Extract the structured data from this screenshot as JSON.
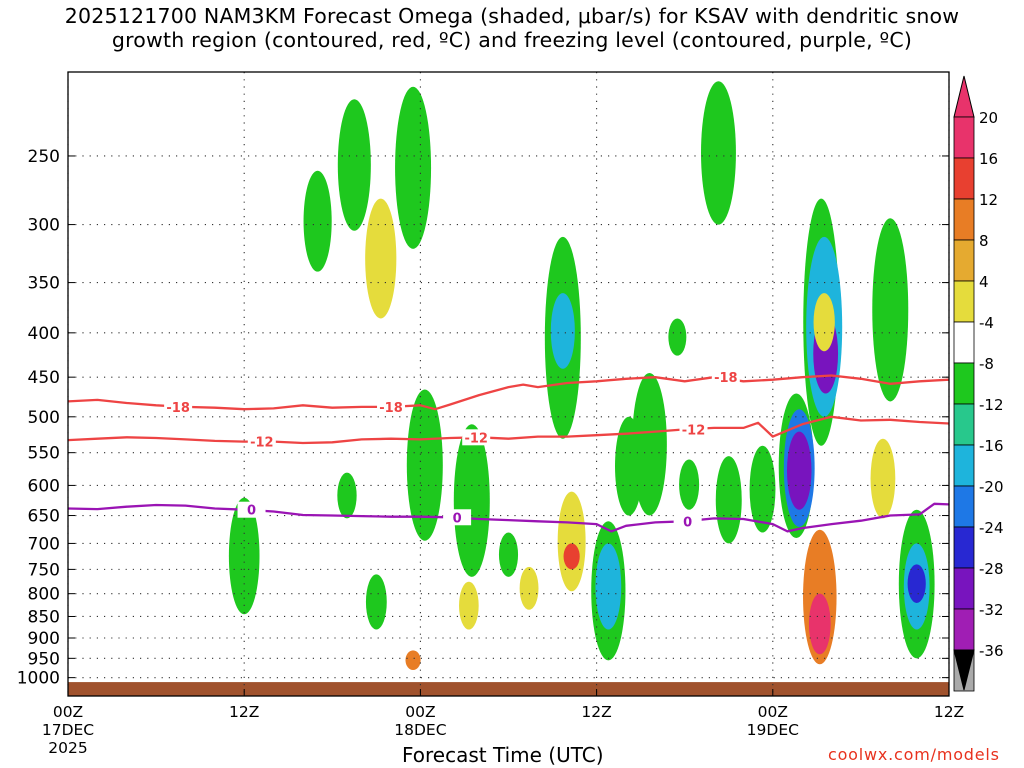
{
  "title": {
    "line1": "2025121700 NAM3KM Forecast Omega (shaded, μbar/s) for KSAV with dendritic snow",
    "line2": "growth region (contoured, red, ºC) and freezing level (contoured, purple, ºC)"
  },
  "credit": "coolwx.com/models",
  "chart_data": {
    "type": "heatmap",
    "title": "2025121700 NAM3KM Forecast Omega (shaded, μbar/s) for KSAV with dendritic snow growth region (contoured, red, ºC) and freezing level (contoured, purple, ºC)",
    "xlabel": "Forecast Time (UTC)",
    "ylabel": "",
    "x_range_hours": [
      0,
      60
    ],
    "y_range_hPa": [
      1050,
      200
    ],
    "y_ticks": [
      250,
      300,
      350,
      400,
      450,
      500,
      550,
      600,
      650,
      700,
      750,
      800,
      850,
      900,
      950,
      1000
    ],
    "x_ticks": [
      {
        "hour": 0,
        "label": "00Z",
        "date": "17DEC",
        "year": "2025"
      },
      {
        "hour": 12,
        "label": "12Z",
        "date": "",
        "year": ""
      },
      {
        "hour": 24,
        "label": "00Z",
        "date": "18DEC",
        "year": ""
      },
      {
        "hour": 36,
        "label": "12Z",
        "date": "",
        "year": ""
      },
      {
        "hour": 48,
        "label": "00Z",
        "date": "19DEC",
        "year": ""
      },
      {
        "hour": 60,
        "label": "12Z",
        "date": "",
        "year": ""
      }
    ],
    "colorbar": {
      "labels": [
        "20",
        "16",
        "12",
        "8",
        "4",
        "-4",
        "-8",
        "-12",
        "-16",
        "-20",
        "-24",
        "-28",
        "-32",
        "-36"
      ],
      "colors": [
        "#e8336b",
        "#e84030",
        "#e87d25",
        "#e5aa30",
        "#e5dc3c",
        "#ffffff",
        "#1ec81e",
        "#28c88c",
        "#1eb4dc",
        "#1e78e6",
        "#2828d2",
        "#7814be",
        "#a01eb4",
        "#aaaaaa"
      ]
    },
    "contours": [
      {
        "name": "dendritic-minus-18",
        "label": "-18",
        "color": "#ee4444",
        "x": [
          0,
          2,
          4,
          6,
          8,
          10,
          12,
          14,
          16,
          18,
          20,
          22,
          24,
          25,
          26,
          28,
          30,
          31,
          32,
          34,
          36,
          38,
          40,
          42,
          44,
          46,
          48,
          50,
          52,
          54,
          56,
          58,
          60
        ],
        "y": [
          480,
          478,
          482,
          485,
          487,
          488,
          490,
          489,
          485,
          488,
          487,
          487,
          485,
          490,
          484,
          472,
          462,
          459,
          462,
          457,
          455,
          452,
          450,
          455,
          450,
          455,
          453,
          450,
          448,
          452,
          458,
          455,
          453
        ]
      },
      {
        "name": "dendritic-minus-12",
        "label": "-12",
        "color": "#ee4444",
        "x": [
          0,
          2,
          4,
          6,
          8,
          10,
          12,
          14,
          16,
          18,
          20,
          22,
          24,
          26,
          28,
          30,
          32,
          34,
          36,
          38,
          40,
          42,
          44,
          46,
          47,
          48,
          50,
          52,
          54,
          56,
          58,
          60
        ],
        "y": [
          532,
          530,
          528,
          529,
          531,
          533,
          534,
          534,
          536,
          535,
          531,
          530,
          531,
          529,
          528,
          530,
          527,
          527,
          525,
          523,
          520,
          517,
          515,
          515,
          508,
          527,
          510,
          500,
          505,
          504,
          507,
          509
        ]
      },
      {
        "name": "freezing-level-0",
        "label": "0",
        "color": "#9a14b4",
        "x": [
          0,
          2,
          4,
          6,
          8,
          10,
          12,
          14,
          16,
          18,
          20,
          22,
          24,
          26,
          28,
          30,
          32,
          34,
          36,
          37,
          38,
          40,
          42,
          44,
          46,
          48,
          49,
          50,
          52,
          54,
          56,
          58,
          59,
          60
        ],
        "y": [
          638,
          639,
          635,
          632,
          633,
          638,
          640,
          643,
          649,
          650,
          651,
          652,
          652,
          653,
          656,
          658,
          660,
          662,
          665,
          678,
          668,
          662,
          660,
          655,
          656,
          665,
          678,
          672,
          665,
          659,
          650,
          648,
          630,
          631
        ]
      }
    ],
    "omega_cells": [
      {
        "h": 12,
        "p0": 620,
        "p1": 845,
        "c": -6
      },
      {
        "h": 17,
        "p0": 260,
        "p1": 340,
        "c": -6
      },
      {
        "h": 19,
        "p0": 580,
        "p1": 655,
        "c": -6
      },
      {
        "h": 19.5,
        "p0": 215,
        "p1": 305,
        "c": -6
      },
      {
        "h": 21.3,
        "p0": 280,
        "p1": 385,
        "c": 6
      },
      {
        "h": 23.5,
        "p0": 208,
        "p1": 320,
        "c": -6
      },
      {
        "h": 21,
        "p0": 760,
        "p1": 880,
        "c": -6
      },
      {
        "h": 23.5,
        "p0": 930,
        "p1": 980,
        "c": 14
      },
      {
        "h": 24.3,
        "p0": 465,
        "p1": 695,
        "c": -6
      },
      {
        "h": 27.5,
        "p0": 510,
        "p1": 765,
        "c": -6
      },
      {
        "h": 27.3,
        "p0": 775,
        "p1": 880,
        "c": 6
      },
      {
        "h": 30,
        "p0": 680,
        "p1": 765,
        "c": -6
      },
      {
        "h": 31.4,
        "p0": 745,
        "p1": 835,
        "c": 6
      },
      {
        "h": 33.7,
        "p0": 310,
        "p1": 530,
        "c": -6
      },
      {
        "h": 33.7,
        "p0": 360,
        "p1": 440,
        "c": -14
      },
      {
        "h": 34.3,
        "p0": 610,
        "p1": 795,
        "c": 6
      },
      {
        "h": 34.3,
        "p0": 700,
        "p1": 750,
        "c": 18
      },
      {
        "h": 36.8,
        "p0": 660,
        "p1": 955,
        "c": -6
      },
      {
        "h": 36.8,
        "p0": 700,
        "p1": 880,
        "c": -12
      },
      {
        "h": 38.2,
        "p0": 500,
        "p1": 650,
        "c": -6
      },
      {
        "h": 39.6,
        "p0": 445,
        "p1": 650,
        "c": -6
      },
      {
        "h": 41.5,
        "p0": 385,
        "p1": 425,
        "c": -6
      },
      {
        "h": 42.3,
        "p0": 560,
        "p1": 640,
        "c": -6
      },
      {
        "h": 44.3,
        "p0": 205,
        "p1": 300,
        "c": -6
      },
      {
        "h": 45,
        "p0": 555,
        "p1": 700,
        "c": -6
      },
      {
        "h": 47.3,
        "p0": 540,
        "p1": 680,
        "c": -6
      },
      {
        "h": 49.6,
        "p0": 470,
        "p1": 690,
        "c": -6
      },
      {
        "h": 49.8,
        "p0": 490,
        "p1": 670,
        "c": -16
      },
      {
        "h": 49.8,
        "p0": 520,
        "p1": 640,
        "c": -24
      },
      {
        "h": 51.3,
        "p0": 280,
        "p1": 540,
        "c": -6
      },
      {
        "h": 51.5,
        "p0": 310,
        "p1": 500,
        "c": -14
      },
      {
        "h": 51.6,
        "p0": 380,
        "p1": 470,
        "c": -26
      },
      {
        "h": 51.5,
        "p0": 360,
        "p1": 420,
        "c": 5
      },
      {
        "h": 51.2,
        "p0": 675,
        "p1": 965,
        "c": 12
      },
      {
        "h": 51.2,
        "p0": 800,
        "p1": 940,
        "c": 20
      },
      {
        "h": 55.5,
        "p0": 530,
        "p1": 655,
        "c": 6
      },
      {
        "h": 56,
        "p0": 295,
        "p1": 480,
        "c": -6
      },
      {
        "h": 57.8,
        "p0": 640,
        "p1": 950,
        "c": -6
      },
      {
        "h": 57.8,
        "p0": 700,
        "p1": 880,
        "c": -14
      },
      {
        "h": 57.8,
        "p0": 740,
        "p1": 820,
        "c": -22
      }
    ],
    "ground": {
      "color": "#a0522d",
      "surface_hPa": 1020
    }
  }
}
